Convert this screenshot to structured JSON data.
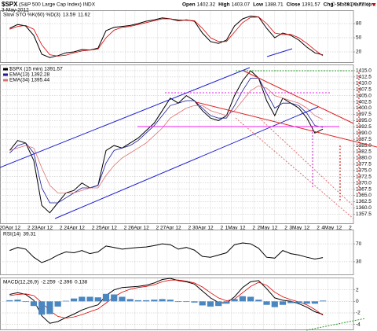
{
  "header": {
    "symbol": "$SPX",
    "name": "(S&P 500 Large Cap Index) INDX",
    "date": "3-May-2012",
    "stats": [
      {
        "label": "Open",
        "value": 1402.32
      },
      {
        "label": "High",
        "value": 1403.07
      },
      {
        "label": "Low",
        "value": 1388.71
      },
      {
        "label": "Close",
        "value": 1391.57
      }
    ],
    "change_label": "Chg",
    "change": "-10.74 (-0.77%)",
    "copyright": "© StockCharts.com"
  },
  "chart_data": [
    {
      "type": "line",
      "title": "Slow STO %K(60) %D(3)",
      "xlim": [
        -0.2,
        10.8
      ],
      "ylim": [
        0,
        100
      ],
      "yticks": [
        80,
        50,
        20
      ],
      "x": [
        0.1,
        0.35,
        0.6,
        0.85,
        1.1,
        1.35,
        1.6,
        1.85,
        2.1,
        2.35,
        2.6,
        2.85,
        3.1,
        3.35,
        3.6,
        3.85,
        4.1,
        4.35,
        4.6,
        4.85,
        5.1,
        5.35,
        5.6,
        5.85,
        6.1,
        6.35,
        6.6,
        6.85,
        7.1,
        7.35,
        7.6,
        7.85,
        8.1,
        8.35,
        8.6,
        8.85,
        9.1,
        9.35,
        9.6,
        9.85
      ],
      "series": [
        {
          "color": "#000000",
          "values": [
            70,
            78,
            75,
            55,
            15,
            8,
            12,
            18,
            20,
            25,
            24,
            28,
            65,
            72,
            74,
            76,
            80,
            85,
            88,
            92,
            90,
            86,
            88,
            85,
            60,
            42,
            38,
            45,
            75,
            90,
            96,
            94,
            70,
            50,
            60,
            55,
            45,
            30,
            18,
            13.59
          ]
        },
        {
          "color": "#dd0000",
          "values": [
            68,
            74,
            76,
            68,
            35,
            14,
            11,
            13,
            18,
            22,
            24,
            26,
            50,
            66,
            72,
            74,
            78,
            82,
            86,
            90,
            90,
            88,
            87,
            86,
            70,
            50,
            42,
            42,
            62,
            82,
            93,
            94,
            80,
            60,
            57,
            57,
            50,
            38,
            24,
            11.62
          ]
        }
      ]
    },
    {
      "type": "line",
      "xlim": [
        -0.2,
        10.8
      ],
      "ylim": [
        1353.5,
        1417.5
      ],
      "yticks": [
        {
          "value": 1415,
          "label": "1415.0"
        },
        1412.5,
        {
          "value": 1410,
          "label": "1410.0"
        },
        1407.5,
        {
          "value": 1405,
          "label": "1405.0"
        },
        1402.5,
        {
          "value": 1400,
          "label": "1400.0"
        },
        1397.5,
        {
          "value": 1395,
          "label": "1395.0"
        },
        1392.5,
        {
          "value": 1390,
          "label": "1390.0"
        },
        1387.5,
        {
          "value": 1385,
          "label": "1385.0"
        },
        1382.5,
        {
          "value": 1380,
          "label": "1380.0"
        },
        1377.5,
        {
          "value": 1375,
          "label": "1375.0"
        },
        1372.5,
        {
          "value": 1370,
          "label": "1370.0"
        },
        1367.5,
        {
          "value": 1365,
          "label": "1365.0"
        },
        1362.5,
        {
          "value": 1360,
          "label": "1360.0"
        },
        1357.5
      ],
      "xticks": [
        {
          "value": 0,
          "label": "20Apr"
        },
        {
          "value": 0.35,
          "label": "12"
        },
        {
          "value": 0.7,
          "label": "2"
        },
        {
          "value": 1,
          "label": "23Apr"
        },
        {
          "value": 1.35,
          "label": "12"
        },
        {
          "value": 1.7,
          "label": "2"
        },
        {
          "value": 2,
          "label": "24Apr"
        },
        {
          "value": 2.35,
          "label": "12"
        },
        {
          "value": 2.7,
          "label": "2"
        },
        {
          "value": 3,
          "label": "25Apr"
        },
        {
          "value": 3.35,
          "label": "12"
        },
        {
          "value": 3.7,
          "label": "2"
        },
        {
          "value": 4,
          "label": "26Apr"
        },
        {
          "value": 4.35,
          "label": "12"
        },
        {
          "value": 4.7,
          "label": "2"
        },
        {
          "value": 5,
          "label": "27Apr"
        },
        {
          "value": 5.35,
          "label": "12"
        },
        {
          "value": 5.7,
          "label": "2"
        },
        {
          "value": 6,
          "label": "30Apr"
        },
        {
          "value": 6.35,
          "label": "12"
        },
        {
          "value": 6.7,
          "label": "2"
        },
        {
          "value": 7,
          "label": "1May"
        },
        {
          "value": 7.35,
          "label": "12"
        },
        {
          "value": 7.7,
          "label": "2"
        },
        {
          "value": 8,
          "label": "2May"
        },
        {
          "value": 8.35,
          "label": "12"
        },
        {
          "value": 8.7,
          "label": "2"
        },
        {
          "value": 9,
          "label": "3May"
        },
        {
          "value": 9.35,
          "label": "12"
        },
        {
          "value": 9.7,
          "label": "2"
        },
        {
          "value": 10,
          "label": "4May"
        },
        {
          "value": 10.35,
          "label": "12"
        },
        {
          "value": 10.7,
          "label": "2"
        }
      ],
      "x": [
        0.1,
        0.35,
        0.6,
        0.85,
        1.1,
        1.35,
        1.6,
        1.85,
        2.1,
        2.35,
        2.6,
        2.85,
        3.1,
        3.35,
        3.6,
        3.85,
        4.1,
        4.35,
        4.6,
        4.85,
        5.1,
        5.35,
        5.6,
        5.85,
        6.1,
        6.35,
        6.6,
        6.85,
        7.1,
        7.35,
        7.6,
        7.85,
        8.1,
        8.35,
        8.6,
        8.85,
        9.1,
        9.35,
        9.6,
        9.85
      ],
      "series": [
        {
          "name": "$SPX (15 min)",
          "color": "#000000",
          "values": [
            1383,
            1387,
            1386,
            1379,
            1361,
            1358,
            1362,
            1366,
            1367,
            1370,
            1368,
            1369,
            1383,
            1385,
            1384,
            1386,
            1388,
            1391,
            1394,
            1399,
            1404,
            1402,
            1405,
            1403,
            1399,
            1396,
            1395,
            1397,
            1405,
            1411,
            1415,
            1412,
            1403,
            1397,
            1404,
            1402,
            1400,
            1396,
            1390,
            1391.57
          ]
        },
        {
          "name": "EMA(13)",
          "color": "#1a1a9a",
          "values": [
            1382,
            1385,
            1386,
            1382,
            1368,
            1362,
            1362,
            1364,
            1366,
            1368,
            1368,
            1369,
            1378,
            1383,
            1384,
            1385,
            1387,
            1390,
            1393,
            1397,
            1401,
            1402,
            1403,
            1403,
            1400,
            1397,
            1396,
            1396,
            1401,
            1407,
            1412,
            1412,
            1406,
            1400,
            1402,
            1402,
            1401,
            1398,
            1393,
            1392.28
          ]
        },
        {
          "name": "EMA(34)",
          "color": "#e07070",
          "values": [
            1383,
            1384,
            1385,
            1384,
            1376,
            1369,
            1366,
            1366,
            1366,
            1367,
            1368,
            1368,
            1373,
            1377,
            1380,
            1382,
            1384,
            1386,
            1389,
            1392,
            1396,
            1398,
            1400,
            1401,
            1401,
            1399,
            1398,
            1397,
            1399,
            1403,
            1407,
            1409,
            1408,
            1405,
            1404,
            1403,
            1402,
            1400,
            1397,
            1395.44
          ]
        }
      ]
    },
    {
      "type": "line",
      "title": "RSI(14)",
      "xlim": [
        -0.2,
        10.8
      ],
      "ylim": [
        0,
        100
      ],
      "yticks": [
        70,
        30
      ],
      "x": [
        0.1,
        0.35,
        0.6,
        0.85,
        1.1,
        1.35,
        1.6,
        1.85,
        2.1,
        2.35,
        2.6,
        2.85,
        3.1,
        3.35,
        3.6,
        3.85,
        4.1,
        4.35,
        4.6,
        4.85,
        5.1,
        5.35,
        5.6,
        5.85,
        6.1,
        6.35,
        6.6,
        6.85,
        7.1,
        7.35,
        7.6,
        7.85,
        8.1,
        8.35,
        8.6,
        8.85,
        9.1,
        9.35,
        9.6,
        9.85
      ],
      "series": [
        {
          "color": "#000000",
          "values": [
            55,
            62,
            58,
            40,
            28,
            35,
            45,
            52,
            50,
            55,
            48,
            52,
            65,
            62,
            58,
            60,
            62,
            63,
            66,
            70,
            68,
            58,
            62,
            56,
            42,
            40,
            45,
            50,
            68,
            72,
            70,
            60,
            40,
            38,
            55,
            48,
            45,
            40,
            36,
            39.31
          ]
        }
      ]
    },
    {
      "type": "line",
      "title": "MACD(12,26,9)",
      "xlim": [
        -0.2,
        10.8
      ],
      "ylim": [
        -5,
        4
      ],
      "yticks": [
        2,
        0,
        -2,
        -4
      ],
      "x": [
        0.1,
        0.35,
        0.6,
        0.85,
        1.1,
        1.35,
        1.6,
        1.85,
        2.1,
        2.35,
        2.6,
        2.85,
        3.1,
        3.35,
        3.6,
        3.85,
        4.1,
        4.35,
        4.6,
        4.85,
        5.1,
        5.35,
        5.6,
        5.85,
        6.1,
        6.35,
        6.6,
        6.85,
        7.1,
        7.35,
        7.6,
        7.85,
        8.1,
        8.35,
        8.6,
        8.85,
        9.1,
        9.35,
        9.6,
        9.85
      ],
      "series": [
        {
          "color": "#000000",
          "values": [
            1.2,
            1.5,
            1.2,
            0.2,
            -2.5,
            -3.8,
            -3.5,
            -2.8,
            -2.2,
            -1.5,
            -1.0,
            -0.6,
            1.0,
            2.0,
            2.4,
            2.5,
            2.6,
            2.8,
            3.2,
            3.8,
            4.0,
            3.6,
            3.4,
            3.0,
            1.8,
            0.6,
            -0.2,
            -0.3,
            0.8,
            2.4,
            3.4,
            3.6,
            2.2,
            0.6,
            0.2,
            0.0,
            -0.4,
            -1.0,
            -1.8,
            -2.259
          ]
        },
        {
          "color": "#dd0000",
          "values": [
            1.0,
            1.2,
            1.3,
            1.0,
            -0.2,
            -1.6,
            -2.6,
            -2.9,
            -2.7,
            -2.3,
            -1.8,
            -1.3,
            -0.3,
            0.8,
            1.6,
            2.1,
            2.4,
            2.6,
            2.9,
            3.4,
            3.7,
            3.7,
            3.5,
            3.2,
            2.5,
            1.5,
            0.6,
            0.1,
            0.4,
            1.5,
            2.6,
            3.3,
            2.8,
            1.6,
            0.8,
            0.3,
            -0.1,
            -0.6,
            -1.4,
            -2.396
          ]
        },
        {
          "type": "bar",
          "color": "#4a86c0",
          "values": [
            0.2,
            0.3,
            -0.1,
            -0.8,
            -2.3,
            -2.2,
            -0.9,
            0.1,
            0.5,
            0.8,
            0.8,
            0.7,
            1.3,
            1.2,
            0.8,
            0.4,
            0.2,
            0.2,
            0.3,
            0.4,
            0.3,
            -0.1,
            -0.1,
            -0.2,
            -0.7,
            -0.9,
            -0.8,
            -0.4,
            0.4,
            0.9,
            0.8,
            0.3,
            -0.6,
            -1.0,
            -0.6,
            -0.3,
            -0.3,
            -0.4,
            -0.4,
            0.138
          ]
        }
      ]
    }
  ]
}
